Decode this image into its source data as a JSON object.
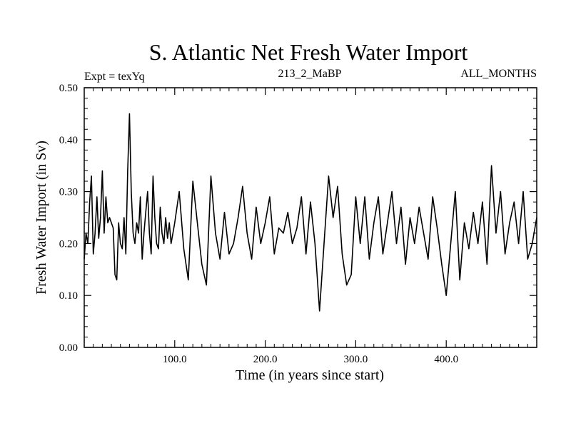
{
  "chart_data": {
    "type": "line",
    "title": "S. Atlantic Net Fresh Water Import",
    "subtitle_left": "Expt = texYq",
    "subtitle_center": "213_2_MaBP",
    "subtitle_right": "ALL_MONTHS",
    "xlabel": "Time (in years since start)",
    "ylabel": "Fresh Water Import (in Sv)",
    "xlim": [
      0,
      500
    ],
    "ylim": [
      0,
      0.5
    ],
    "x_ticks": [
      100,
      200,
      300,
      400
    ],
    "x_tick_labels": [
      "100.0",
      "200.0",
      "300.0",
      "400.0"
    ],
    "y_ticks": [
      0,
      0.1,
      0.2,
      0.3,
      0.4,
      0.5
    ],
    "y_tick_labels": [
      "0.00",
      "0.10",
      "0.20",
      "0.30",
      "0.40",
      "0.50"
    ],
    "grid": false,
    "line_color": "#000000",
    "series": [
      {
        "name": "Fresh Water Import",
        "x": [
          0,
          2,
          4,
          6,
          8,
          10,
          12,
          14,
          16,
          18,
          20,
          22,
          24,
          26,
          28,
          30,
          32,
          34,
          36,
          38,
          40,
          42,
          44,
          46,
          48,
          50,
          52,
          54,
          56,
          58,
          60,
          62,
          64,
          66,
          68,
          70,
          72,
          74,
          76,
          78,
          80,
          82,
          84,
          86,
          88,
          90,
          92,
          94,
          96,
          98,
          100,
          105,
          110,
          115,
          120,
          125,
          130,
          135,
          140,
          145,
          150,
          155,
          160,
          165,
          170,
          175,
          180,
          185,
          190,
          195,
          200,
          205,
          210,
          215,
          220,
          225,
          230,
          235,
          240,
          245,
          250,
          255,
          260,
          265,
          270,
          275,
          280,
          285,
          290,
          295,
          300,
          305,
          310,
          315,
          320,
          325,
          330,
          335,
          340,
          345,
          350,
          355,
          360,
          365,
          370,
          375,
          380,
          385,
          390,
          395,
          400,
          405,
          410,
          415,
          420,
          425,
          430,
          435,
          440,
          445,
          450,
          455,
          460,
          465,
          470,
          475,
          480,
          485,
          490,
          495,
          500
        ],
        "values": [
          0.17,
          0.22,
          0.2,
          0.28,
          0.33,
          0.18,
          0.22,
          0.29,
          0.21,
          0.25,
          0.34,
          0.22,
          0.29,
          0.24,
          0.25,
          0.24,
          0.23,
          0.14,
          0.13,
          0.24,
          0.2,
          0.19,
          0.25,
          0.18,
          0.34,
          0.45,
          0.3,
          0.22,
          0.2,
          0.24,
          0.22,
          0.29,
          0.17,
          0.22,
          0.26,
          0.3,
          0.22,
          0.18,
          0.33,
          0.25,
          0.2,
          0.19,
          0.27,
          0.22,
          0.2,
          0.25,
          0.21,
          0.24,
          0.2,
          0.22,
          0.24,
          0.3,
          0.19,
          0.13,
          0.32,
          0.24,
          0.16,
          0.12,
          0.33,
          0.22,
          0.17,
          0.26,
          0.18,
          0.2,
          0.25,
          0.31,
          0.22,
          0.17,
          0.27,
          0.2,
          0.24,
          0.29,
          0.18,
          0.23,
          0.22,
          0.26,
          0.2,
          0.23,
          0.29,
          0.18,
          0.28,
          0.2,
          0.07,
          0.2,
          0.33,
          0.25,
          0.31,
          0.18,
          0.12,
          0.14,
          0.29,
          0.2,
          0.29,
          0.17,
          0.24,
          0.29,
          0.18,
          0.24,
          0.3,
          0.2,
          0.27,
          0.16,
          0.25,
          0.2,
          0.27,
          0.22,
          0.17,
          0.29,
          0.23,
          0.16,
          0.1,
          0.2,
          0.3,
          0.13,
          0.24,
          0.19,
          0.26,
          0.2,
          0.28,
          0.16,
          0.35,
          0.22,
          0.3,
          0.18,
          0.24,
          0.28,
          0.2,
          0.3,
          0.17,
          0.2,
          0.25
        ]
      }
    ]
  }
}
